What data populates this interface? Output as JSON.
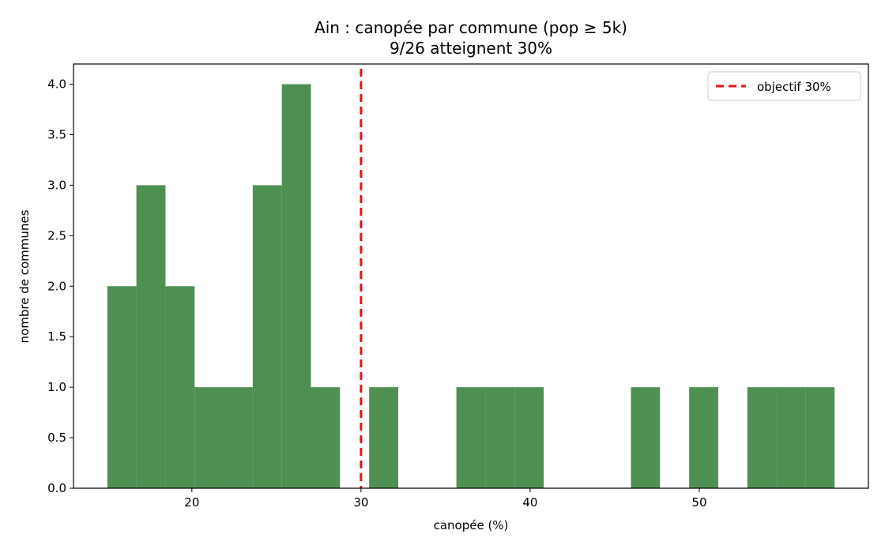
{
  "chart_data": {
    "type": "bar",
    "title": "Ain : canopée par commune (pop ≥ 5k)",
    "subtitle": "9/26 atteignent 30%",
    "xlabel": "canopée (%)",
    "ylabel": "nombre de communes",
    "xlim": [
      13,
      60
    ],
    "ylim": [
      0,
      4.2
    ],
    "xticks": [
      20,
      30,
      40,
      50
    ],
    "yticks": [
      0.0,
      0.5,
      1.0,
      1.5,
      2.0,
      2.5,
      3.0,
      3.5,
      4.0
    ],
    "bin_edges": [
      15.0,
      16.72,
      18.44,
      20.16,
      21.88,
      23.6,
      25.32,
      27.04,
      28.76,
      30.48,
      32.2,
      33.92,
      35.64,
      37.36,
      39.08,
      40.8,
      42.52,
      44.24,
      45.96,
      47.68,
      49.4,
      51.12,
      52.84,
      54.56,
      56.28,
      58.0
    ],
    "counts": [
      2,
      3,
      2,
      1,
      1,
      3,
      4,
      1,
      0,
      1,
      0,
      0,
      1,
      1,
      1,
      0,
      0,
      0,
      1,
      0,
      1,
      0,
      1,
      1,
      1
    ],
    "bar_color": "#4e9052",
    "reference_line": {
      "x": 30,
      "label": "objectif 30%",
      "color": "#ee1111",
      "style": "dashed"
    },
    "legend_position": "top-right",
    "grid": false
  }
}
